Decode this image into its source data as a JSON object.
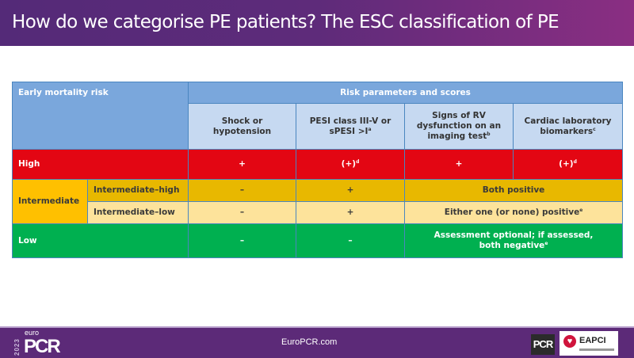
{
  "title": "How do we categorise PE patients? The ESC classification of PE",
  "table": {
    "header_left": "Early mortality risk",
    "header_group": "Risk parameters and scores",
    "columns": [
      {
        "text": "Shock or hypotension",
        "sup": ""
      },
      {
        "text": "PESI class III-V or sPESI >I",
        "sup": "a"
      },
      {
        "text": "Signs of RV dysfunction on an imaging test",
        "sup": "b"
      },
      {
        "text": "Cardiac laboratory biomarkers",
        "sup": "c"
      }
    ],
    "rows": {
      "high": {
        "label": "High",
        "c1": "+",
        "c2": "(+)",
        "c2_sup": "d",
        "c3": "+",
        "c4": "(+)",
        "c4_sup": "d"
      },
      "intermediate_label": "Intermediate",
      "intermediate_high": {
        "label": "Intermediate–high",
        "c1": "–",
        "c2": "+",
        "c34": "Both positive"
      },
      "intermediate_low": {
        "label": "Intermediate–low",
        "c1": "–",
        "c2": "+",
        "c34": "Either one (or none) positive",
        "c34_sup": "e"
      },
      "low": {
        "label": "Low",
        "c1": "–",
        "c2": "–",
        "c34_line1": "Assessment optional; if assessed,",
        "c34_line2": "both negative",
        "c34_sup": "e"
      }
    }
  },
  "colors": {
    "header": "#7aa7dc",
    "subheader": "#c6d9f1",
    "high": "#e30613",
    "intermediate": "#ffc000",
    "intermediate_high": "#e8b800",
    "intermediate_low": "#fde39b",
    "low": "#00b050",
    "brand_purple": "#5c2a78"
  },
  "footer": {
    "site": "EuroPCR.com",
    "logo_year": "2023",
    "logo_euro": "euro",
    "logo_pcr": "PCR",
    "partner_pcr": "PCR",
    "partner_eapci": "EAPCI"
  }
}
